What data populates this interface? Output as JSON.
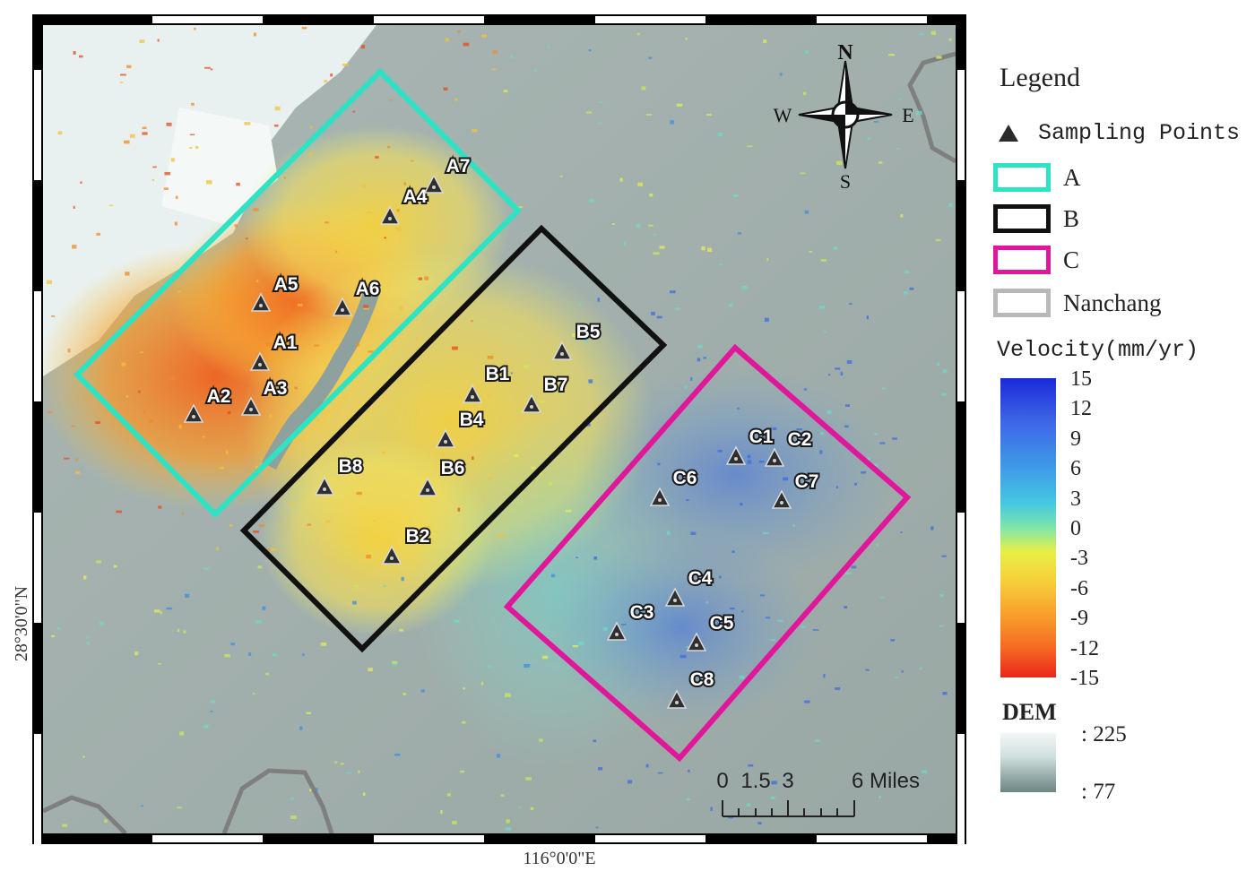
{
  "map": {
    "lat_label": "28°30'0\"N",
    "lon_label": "116°0'0\"E",
    "compass": {
      "n": "N",
      "s": "S",
      "e": "E",
      "w": "W"
    },
    "scale_bar": {
      "ticks": [
        "0",
        "1.5",
        "3",
        "6 Miles"
      ]
    },
    "regions": [
      {
        "name": "A",
        "color": "#2de3c4"
      },
      {
        "name": "B",
        "color": "#111111"
      },
      {
        "name": "C",
        "color": "#e0179a"
      }
    ],
    "sampling_points": [
      "A1",
      "A2",
      "A3",
      "A4",
      "A5",
      "A6",
      "A7",
      "B1",
      "B2",
      "B4",
      "B5",
      "B6",
      "B7",
      "B8",
      "C1",
      "C2",
      "C3",
      "C4",
      "C5",
      "C6",
      "C7",
      "C8"
    ]
  },
  "legend": {
    "title": "Legend",
    "items": [
      {
        "label": "Sampling Points",
        "icon": "triangle-icon"
      },
      {
        "label": "A",
        "color": "#2de3c4"
      },
      {
        "label": "B",
        "color": "#111111"
      },
      {
        "label": "C",
        "color": "#e0179a"
      },
      {
        "label": "Nanchang",
        "color": "#b8b8b8"
      }
    ],
    "velocity_title": "Velocity(mm/yr)",
    "velocity_ticks": [
      "15",
      "12",
      "9",
      "6",
      "3",
      "0",
      "-3",
      "-6",
      "-9",
      "-12",
      "-15"
    ],
    "dem_title": "DEM",
    "dem_high": ": 225",
    "dem_low": ": 77"
  }
}
